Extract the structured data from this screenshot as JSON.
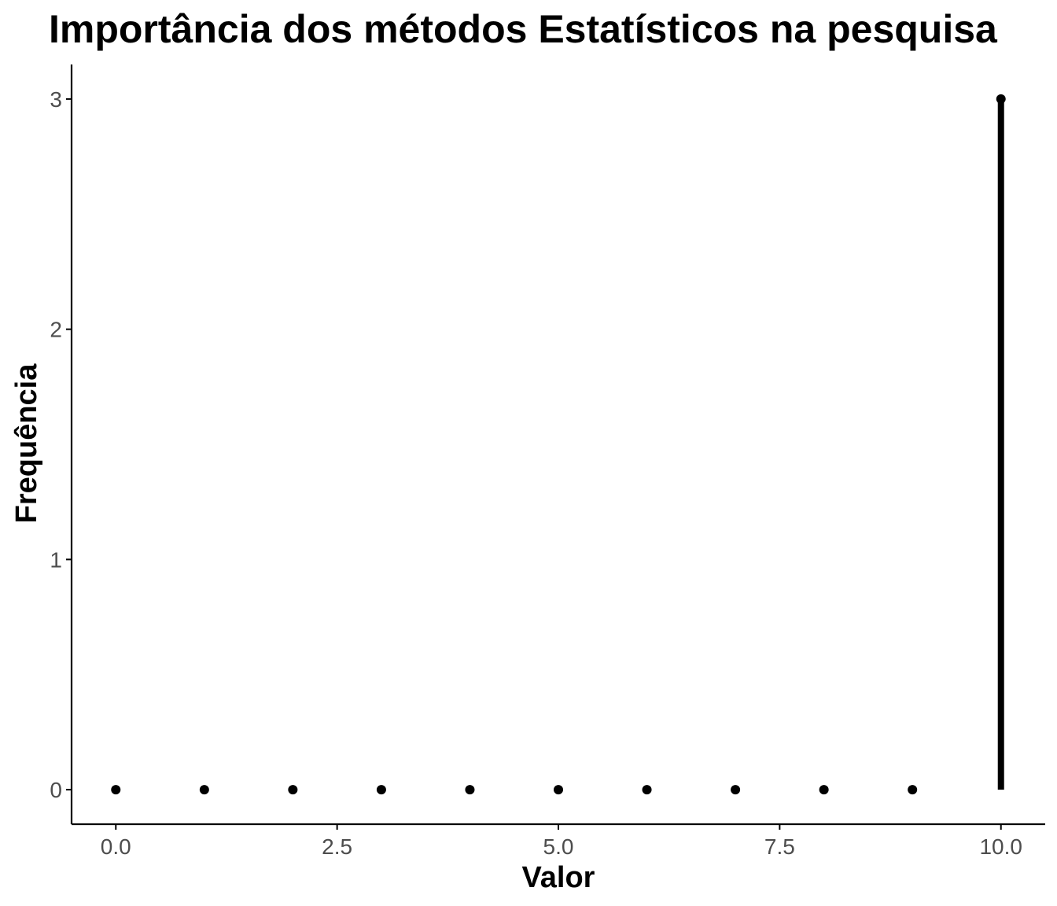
{
  "chart_data": {
    "type": "lollipop",
    "title": "Importância dos métodos Estatísticos na pesquisa",
    "xlabel": "Valor",
    "ylabel": "Frequência",
    "x": [
      0,
      1,
      2,
      3,
      4,
      5,
      6,
      7,
      8,
      9,
      10
    ],
    "values": [
      0,
      0,
      0,
      0,
      0,
      0,
      0,
      0,
      0,
      0,
      3
    ],
    "xlim": [
      -0.5,
      10.5
    ],
    "ylim": [
      -0.15,
      3.15
    ],
    "xticks": [
      0,
      2.5,
      5,
      7.5,
      10
    ],
    "xtick_labels": [
      "0.0",
      "2.5",
      "5.0",
      "7.5",
      "10.0"
    ],
    "yticks": [
      0,
      1,
      2,
      3
    ],
    "ytick_labels": [
      "0",
      "1",
      "2",
      "3"
    ],
    "grid": false,
    "legend": "none",
    "colors": {
      "mark": "#000000",
      "axis": "#000000",
      "tick_text": "#4d4d4d",
      "background": "#ffffff"
    }
  }
}
